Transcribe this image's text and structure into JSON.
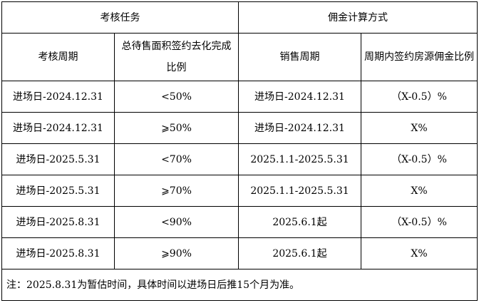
{
  "table": {
    "groups": [
      "考核任务",
      "佣金计算方式"
    ],
    "headers": [
      "考核周期",
      "总待售面积签约去化完成比例",
      "销售周期",
      "周期内签约房源佣金比例"
    ],
    "rows": [
      [
        "进场日-2024.12.31",
        "<50%",
        "进场日-2024.12.31",
        "（X-0.5）%"
      ],
      [
        "进场日-2024.12.31",
        "⩾50%",
        "进场日-2024.12.31",
        "X%"
      ],
      [
        "进场日-2025.5.31",
        "<70%",
        "2025.1.1-2025.5.31",
        "（X-0.5）%"
      ],
      [
        "进场日-2025.5.31",
        "⩾70%",
        "2025.1.1-2025.5.31",
        "X%"
      ],
      [
        "进场日-2025.8.31",
        "<90%",
        "2025.6.1起",
        "（X-0.5）%"
      ],
      [
        "进场日-2025.8.31",
        "⩾90%",
        "2025.6.1起",
        "X%"
      ]
    ],
    "note": "注：2025.8.31为暂估时间，具体时间以进场日后推15个月为准。"
  }
}
